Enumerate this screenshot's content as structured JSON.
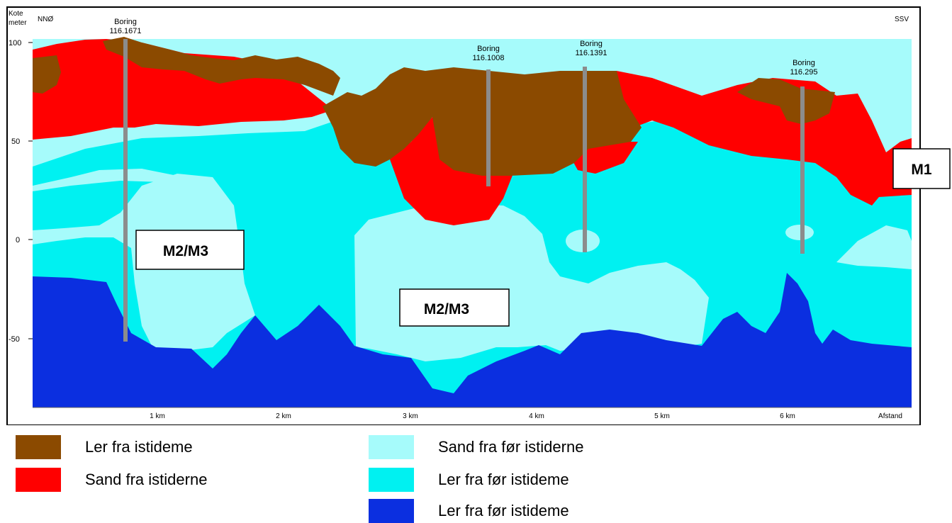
{
  "header": {
    "axis_unit_line1": "Kote",
    "axis_unit_line2": "meter",
    "left_direction": "NNØ",
    "right_direction": "SSV",
    "distance_label": "Afstand"
  },
  "axes": {
    "y_ticks": [
      "100",
      "50",
      "0",
      "-50"
    ],
    "x_ticks": [
      "1 km",
      "2 km",
      "3 km",
      "4 km",
      "5 km",
      "6 km"
    ]
  },
  "colors": {
    "ler_istiderne": "#8b4a00",
    "sand_istiderne": "#ff0000",
    "sand_for": "#a6fbfb",
    "ler_for_cyan": "#00f1f1",
    "ler_for_blue": "#0b2fe0",
    "drill": "#8c8c8c"
  },
  "borings": [
    {
      "name": "Boring",
      "id": "116.1671"
    },
    {
      "name": "Boring",
      "id": "116.1008"
    },
    {
      "name": "Boring",
      "id": "116.1391"
    },
    {
      "name": "Boring",
      "id": "116.295"
    }
  ],
  "annotations": {
    "m1": "M1",
    "m2m3_left": "M2/M3",
    "m2m3_center": "M2/M3"
  },
  "legend": [
    {
      "label": "Ler fra istideme",
      "color": "#8b4a00"
    },
    {
      "label": "Sand fra istiderne",
      "color": "#ff0000"
    },
    {
      "label": "Sand fra før istiderne",
      "color": "#a6fbfb"
    },
    {
      "label": "Ler fra før istideme",
      "color": "#00f1f1"
    },
    {
      "label": "Ler fra før istideme",
      "color": "#0b2fe0"
    }
  ]
}
